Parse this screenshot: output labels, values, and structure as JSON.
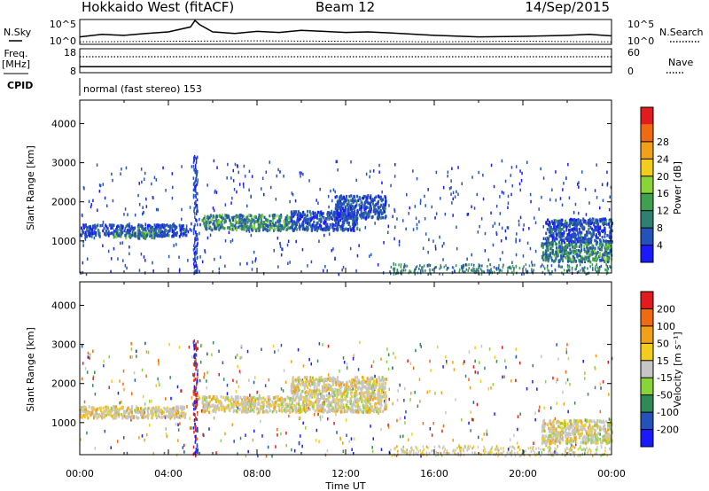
{
  "header": {
    "station": "Hokkaido West (fitACF)",
    "beam": "Beam 12",
    "date": "14/Sep/2015"
  },
  "side_labels": {
    "nsky": "N.Sky",
    "freq_line1": "Freq.",
    "freq_line2": "[MHz]",
    "cpid": "CPID",
    "nsearch": "N.Search",
    "nave": "Nave"
  },
  "cpid_text": "normal (fast stereo) 153",
  "colors": {
    "power_scale": [
      "#1a1aff",
      "#2552b8",
      "#2f7f72",
      "#3fa04f",
      "#8ad43a",
      "#f2cc1e",
      "#f0a01a",
      "#f06a14",
      "#e21c1c"
    ],
    "velocity_scale": [
      "#e21c1c",
      "#f06a14",
      "#f0a01a",
      "#f2cc1e",
      "#c6c6c6",
      "#8ad43a",
      "#2f8a55",
      "#2552b8",
      "#1a1aff"
    ]
  },
  "chart_data": [
    {
      "type": "line",
      "name": "noise-panel",
      "left_ticks": [
        "10^5",
        "10^0"
      ],
      "right_ticks": [
        "10^5",
        "10^0"
      ],
      "series": [
        {
          "name": "N.Sky",
          "style": "solid",
          "x": [
            0,
            1,
            2,
            3,
            4,
            5,
            5.2,
            5.4,
            6,
            7,
            8,
            9,
            10,
            11,
            12,
            13,
            14,
            16,
            18,
            20,
            22,
            23,
            24
          ],
          "y": [
            1.5,
            2.0,
            1.8,
            2.2,
            2.5,
            3.5,
            4.8,
            4.0,
            2.5,
            2.2,
            2.6,
            2.4,
            2.8,
            2.6,
            2.4,
            2.5,
            2.3,
            1.8,
            1.5,
            1.6,
            1.8,
            2.0,
            1.7
          ]
        },
        {
          "name": "N.Search",
          "style": "dotted",
          "x": [
            0,
            4,
            8,
            12,
            16,
            20,
            24
          ],
          "y": [
            0.5,
            0.6,
            0.7,
            0.6,
            0.5,
            0.6,
            0.5
          ]
        }
      ]
    },
    {
      "type": "line",
      "name": "freq-nave-panel",
      "left_ticks": [
        "18",
        "8"
      ],
      "right_ticks": [
        "60",
        "0"
      ],
      "series": [
        {
          "name": "Freq.",
          "style": "solid",
          "x": [
            0,
            24
          ],
          "y": [
            10.5,
            10.5
          ]
        },
        {
          "name": "Nave",
          "style": "dotted",
          "x": [
            0,
            24
          ],
          "y": [
            40,
            40
          ]
        }
      ]
    },
    {
      "type": "heatmap",
      "name": "power-panel",
      "xlabel": "",
      "ylabel": "Slant Range [km]",
      "xlim": [
        0,
        24
      ],
      "ylim": [
        180,
        4600
      ],
      "yticks": [
        1000,
        2000,
        3000,
        4000
      ],
      "colorbar": {
        "label": "Power [dB]",
        "ticks": [
          4,
          8,
          12,
          16,
          20,
          24,
          28
        ]
      },
      "bands": [
        {
          "x": [
            0,
            4.8
          ],
          "r": [
            1150,
            1450
          ],
          "level": "low"
        },
        {
          "x": [
            1.5,
            3.5
          ],
          "r": [
            1100,
            1250
          ],
          "level": "mid"
        },
        {
          "x": [
            5.5,
            9.5
          ],
          "r": [
            1300,
            1700
          ],
          "level": "mid"
        },
        {
          "x": [
            9.5,
            12.5
          ],
          "r": [
            1300,
            1800
          ],
          "level": "low"
        },
        {
          "x": [
            11.5,
            13.8
          ],
          "r": [
            1600,
            2200
          ],
          "level": "low"
        },
        {
          "x": [
            20.8,
            24
          ],
          "r": [
            500,
            1000
          ],
          "level": "mid"
        },
        {
          "x": [
            21,
            24
          ],
          "r": [
            1000,
            1600
          ],
          "level": "low"
        }
      ]
    },
    {
      "type": "heatmap",
      "name": "velocity-panel",
      "xlabel": "Time UT",
      "ylabel": "Slant Range [km]",
      "xlim": [
        0,
        24
      ],
      "ylim": [
        180,
        4600
      ],
      "yticks": [
        1000,
        2000,
        3000,
        4000
      ],
      "xticks": [
        "00:00",
        "04:00",
        "08:00",
        "12:00",
        "16:00",
        "20:00",
        "00:00"
      ],
      "colorbar": {
        "label": "Velocity [m s⁻¹]",
        "ticks": [
          "200",
          "100",
          "50",
          "15",
          "-15",
          "-50",
          "-100",
          "-200"
        ]
      },
      "bands": [
        {
          "x": [
            0,
            4.8
          ],
          "r": [
            1150,
            1450
          ],
          "level": "ground"
        },
        {
          "x": [
            5.5,
            9.5
          ],
          "r": [
            1300,
            1700
          ],
          "level": "ground"
        },
        {
          "x": [
            9.5,
            13.8
          ],
          "r": [
            1300,
            2200
          ],
          "level": "ground"
        },
        {
          "x": [
            20.8,
            24
          ],
          "r": [
            500,
            1100
          ],
          "level": "ground"
        }
      ]
    }
  ]
}
